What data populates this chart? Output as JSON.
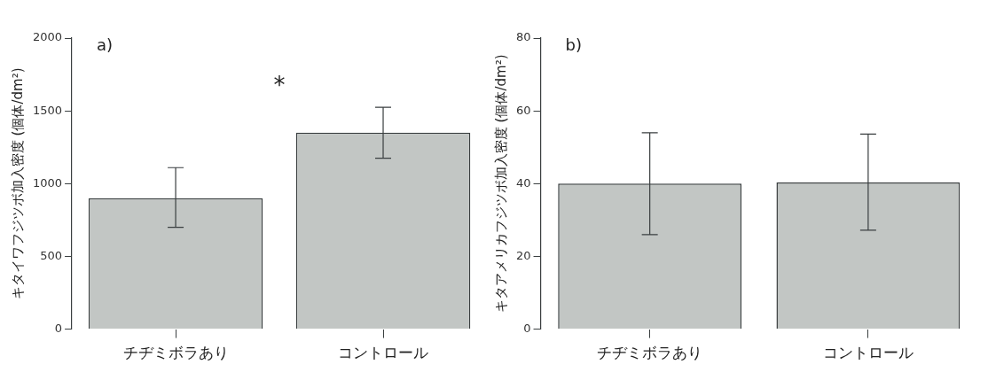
{
  "chart_data": [
    {
      "type": "bar",
      "title": "a)",
      "ylabel": "キタイワフジツボ加入密度 (個体/dm²)",
      "categories": [
        "チヂミボラあり",
        "コントロール"
      ],
      "values": [
        900,
        1350
      ],
      "errors": [
        [
          700,
          1110
        ],
        [
          1175,
          1525
        ]
      ],
      "color": "#c2c6c4",
      "ylim": [
        0,
        2000
      ],
      "yticks": [
        0,
        500,
        1000,
        1500,
        2000
      ],
      "grid": false,
      "legend": false,
      "annotations": [
        "*"
      ]
    },
    {
      "type": "bar",
      "title": "b)",
      "ylabel": "キタアメリカフジツボ加入密度 (個体/dm²)",
      "categories": [
        "チヂミボラあり",
        "コントロール"
      ],
      "values": [
        40,
        40.3
      ],
      "errors": [
        [
          26,
          54
        ],
        [
          27.2,
          53.6
        ]
      ],
      "color": "#c2c6c4",
      "ylim": [
        0,
        80
      ],
      "yticks": [
        0,
        20,
        40,
        60,
        80
      ],
      "grid": false,
      "legend": false
    }
  ]
}
